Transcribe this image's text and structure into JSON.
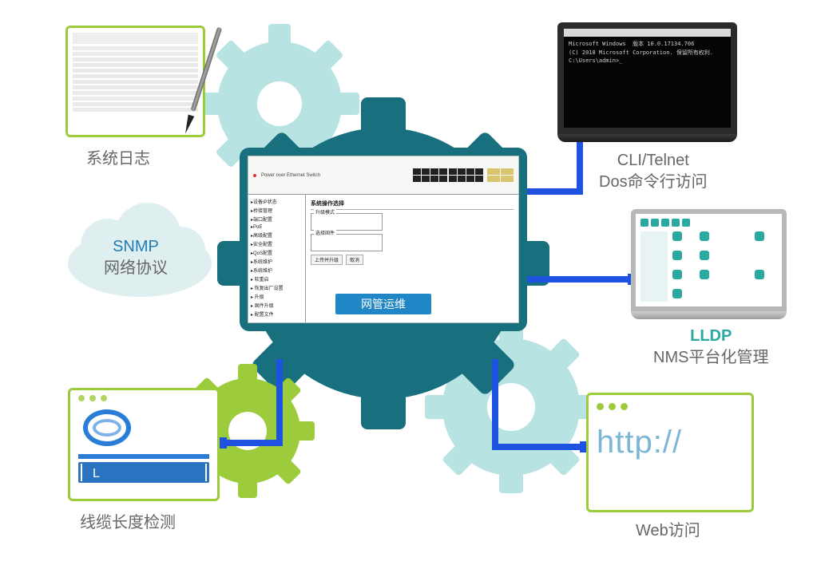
{
  "type": "infographic",
  "colors": {
    "gear_dark": "#18707e",
    "gear_light": "#b8e3e3",
    "cloud": "#dfeff0",
    "green": "#9ccb3b",
    "connector": "#1e52e0",
    "text_gray": "#666666",
    "text_blue": "#1e7cb8",
    "text_teal": "#2aa9a0",
    "http_blue": "#7bb6d6",
    "cable_blue": "#2a7dd6"
  },
  "center": {
    "caption": "网管运维",
    "switch_label": "Power over Ethernet Switch"
  },
  "admin_ui": {
    "title": "系统操作选择",
    "nav": [
      "设备IP状态",
      "桥接管理",
      "端口配置",
      "PoE",
      "高级配置",
      "安全配置",
      "QoS配置",
      "系统维护",
      "系统维护",
      "  软重启",
      "  恢复出厂设置",
      "  升级",
      "  固件升级",
      "  配置文件"
    ],
    "box1_label": "升级模式",
    "box2_label": "选择固件",
    "btn1": "上传并升级",
    "btn2": "取消"
  },
  "syslog": {
    "label": "系统日志"
  },
  "cli": {
    "label_line1": "CLI/Telnet",
    "label_line2": "Dos命令行访问",
    "lines": [
      "Microsoft Windows  版本 10.0.17134.706",
      "(C) 2018 Microsoft Corporation. 保留所有权利.",
      "",
      "C:\\Users\\admin>_"
    ]
  },
  "lldp": {
    "accent": "LLDP",
    "label": "NMS平台化管理"
  },
  "snmp": {
    "accent": "SNMP",
    "label": "网络协议"
  },
  "cable": {
    "label": "线缆长度检测",
    "L": "L"
  },
  "http": {
    "label": "Web访问",
    "text": "http://"
  }
}
